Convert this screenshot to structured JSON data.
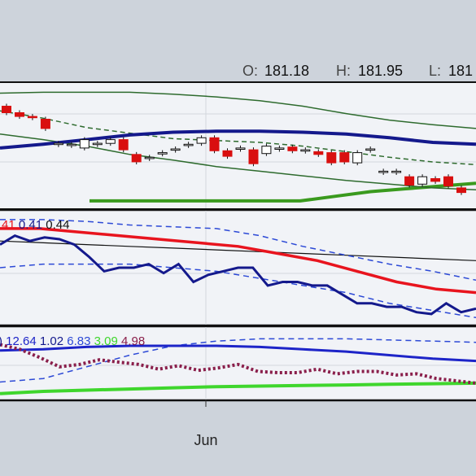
{
  "colors": {
    "background": "#cdd3db",
    "panel": "#f1f3f7",
    "grid": "#d3d7de",
    "border": "#111111",
    "bollinger": "#2e6b2e",
    "ma_dashed": "#2e6b2e",
    "long_ma": "#14198c",
    "very_long_ma": "#3a9a1e",
    "candle_down": "#d90f0f",
    "candle_up": "#ffffff",
    "candle_outline": "#111111",
    "osc_main": "#14198c",
    "osc_signal": "#e8141e",
    "osc_band": "#2c49d6",
    "osc_mid": "#111111",
    "bottom_line": "#1d24c8",
    "bottom_dotted": "#8a1f4b",
    "bottom_dashed": "#2c49d6",
    "bottom_green": "#3fd62d"
  },
  "ohlc_header": {
    "o_label": "O:",
    "o_value": "181.18",
    "h_label": "H:",
    "h_value": "181.95",
    "l_label": "L:",
    "l_value": "181"
  },
  "indicator2_labels": [
    {
      "text": "41",
      "color": "#e8141e"
    },
    {
      "text": "0.41",
      "color": "#14198c"
    },
    {
      "text": "0.44",
      "color": "#111111"
    }
  ],
  "indicator3_labels": [
    {
      "text": ")",
      "color": "#14198c"
    },
    {
      "text": "12.64",
      "color": "#1d24c8"
    },
    {
      "text": "1.02",
      "color": "#14198c"
    },
    {
      "text": "6.83",
      "color": "#2c49d6"
    },
    {
      "text": "3.09",
      "color": "#3fd62d"
    },
    {
      "text": "4.98",
      "color": "#8a1f4b"
    }
  ],
  "chart_data": {
    "type": "candlestick",
    "x_tick_labels": [
      "Jun"
    ],
    "x_tick_index": [
      17
    ],
    "price_panel": {
      "candles": [
        {
          "o": 181.0,
          "c": 180.3
        },
        {
          "o": 180.3,
          "c": 179.9
        },
        {
          "o": 179.9,
          "c": 179.8
        },
        {
          "o": 179.6,
          "c": 178.6
        },
        {
          "o": 177.0,
          "c": 177.0
        },
        {
          "o": 176.9,
          "c": 176.9
        },
        {
          "o": 176.5,
          "c": 177.4
        },
        {
          "o": 177.0,
          "c": 177.0
        },
        {
          "o": 177.0,
          "c": 177.4
        },
        {
          "o": 177.4,
          "c": 176.3
        },
        {
          "o": 175.8,
          "c": 175.0
        },
        {
          "o": 175.5,
          "c": 175.5
        },
        {
          "o": 176.0,
          "c": 176.0
        },
        {
          "o": 176.4,
          "c": 176.4
        },
        {
          "o": 176.9,
          "c": 176.9
        },
        {
          "o": 177.0,
          "c": 177.6
        },
        {
          "o": 177.6,
          "c": 176.2
        },
        {
          "o": 176.2,
          "c": 175.6
        },
        {
          "o": 176.5,
          "c": 176.5
        },
        {
          "o": 176.3,
          "c": 174.8
        },
        {
          "o": 175.9,
          "c": 176.7
        },
        {
          "o": 176.5,
          "c": 176.5
        },
        {
          "o": 176.6,
          "c": 176.2
        },
        {
          "o": 176.3,
          "c": 176.3
        },
        {
          "o": 176.1,
          "c": 175.8
        },
        {
          "o": 176.0,
          "c": 174.9
        },
        {
          "o": 176.0,
          "c": 175.0
        },
        {
          "o": 174.9,
          "c": 176.0
        },
        {
          "o": 176.4,
          "c": 176.4
        },
        {
          "o": 174.0,
          "c": 174.0
        },
        {
          "o": 174.0,
          "c": 174.0
        },
        {
          "o": 173.4,
          "c": 172.5
        },
        {
          "o": 172.6,
          "c": 173.4
        },
        {
          "o": 173.2,
          "c": 172.9
        },
        {
          "o": 173.4,
          "c": 172.4
        },
        {
          "o": 172.2,
          "c": 171.7
        }
      ],
      "bollinger_upper": [
        182.4,
        182.5,
        182.5,
        182.5,
        182.3,
        182.0,
        181.6,
        181.0,
        180.2,
        179.5,
        179.0,
        178.6
      ],
      "bollinger_lower": [
        178.0,
        177.4,
        176.7,
        175.8,
        175.2,
        174.5,
        174.0,
        173.5,
        173.0,
        172.6,
        172.2,
        172.0
      ],
      "ma_dashed": [
        180.5,
        179.7,
        178.7,
        178.1,
        177.5,
        177.3,
        177.1,
        176.7,
        176.1,
        175.5,
        175.0,
        174.7
      ],
      "long_ma": [
        176.5,
        176.9,
        177.4,
        177.9,
        178.2,
        178.3,
        178.3,
        178.2,
        178.0,
        177.6,
        177.1,
        176.9
      ],
      "very_long_ma": [
        170.8,
        170.8,
        170.8,
        170.8,
        170.8,
        170.8,
        170.8,
        171.3,
        171.8,
        172.1,
        172.4,
        172.7
      ]
    },
    "oscillator_panel": {
      "main": [
        0.33,
        0.38,
        0.35,
        0.37,
        0.36,
        0.33,
        0.26,
        0.18,
        0.2,
        0.2,
        0.22,
        0.17,
        0.22,
        0.12,
        0.16,
        0.18,
        0.2,
        0.2,
        0.1,
        0.12,
        0.12,
        0.1,
        0.1,
        0.05,
        0.0,
        0.0,
        -0.02,
        -0.02,
        -0.05,
        -0.06,
        0.0,
        -0.05,
        -0.03
      ],
      "signal": [
        0.42,
        0.42,
        0.4,
        0.38,
        0.36,
        0.34,
        0.32,
        0.28,
        0.24,
        0.18,
        0.12,
        0.08,
        0.06
      ],
      "upper_band": [
        0.47,
        0.47,
        0.46,
        0.44,
        0.43,
        0.42,
        0.38,
        0.32,
        0.27,
        0.22,
        0.18,
        0.13
      ],
      "lower_band": [
        0.2,
        0.22,
        0.22,
        0.22,
        0.2,
        0.18,
        0.14,
        0.1,
        0.06,
        0.0,
        -0.04,
        -0.08
      ],
      "mid_line": [
        0.35,
        0.34,
        0.33,
        0.32,
        0.31,
        0.3,
        0.29,
        0.28,
        0.27,
        0.26,
        0.25,
        0.24
      ],
      "range": [
        -0.12,
        0.52
      ]
    },
    "bottom_panel": {
      "solid_blue": [
        6.4,
        6.5,
        6.7,
        6.8,
        6.8,
        6.8,
        6.7,
        6.5,
        6.3,
        6.0,
        5.7,
        5.5
      ],
      "dotted": [
        6.9,
        6.5,
        5.8,
        5.0,
        5.2,
        5.6,
        5.4,
        5.2,
        4.8,
        5.1,
        4.7,
        4.9,
        5.2,
        4.6,
        4.5,
        4.5,
        4.8,
        4.4,
        4.6,
        4.6,
        4.3,
        4.4,
        4.0,
        3.8,
        3.6
      ],
      "dashed": [
        3.7,
        4.0,
        5.0,
        6.0,
        6.8,
        7.2,
        7.4,
        7.4,
        7.4,
        7.3,
        7.2,
        7.1
      ],
      "green": [
        2.7,
        2.9,
        3.0,
        3.1,
        3.2,
        3.3,
        3.35,
        3.4,
        3.45,
        3.5,
        3.55,
        3.6
      ],
      "range": [
        2.2,
        8.4
      ]
    }
  }
}
